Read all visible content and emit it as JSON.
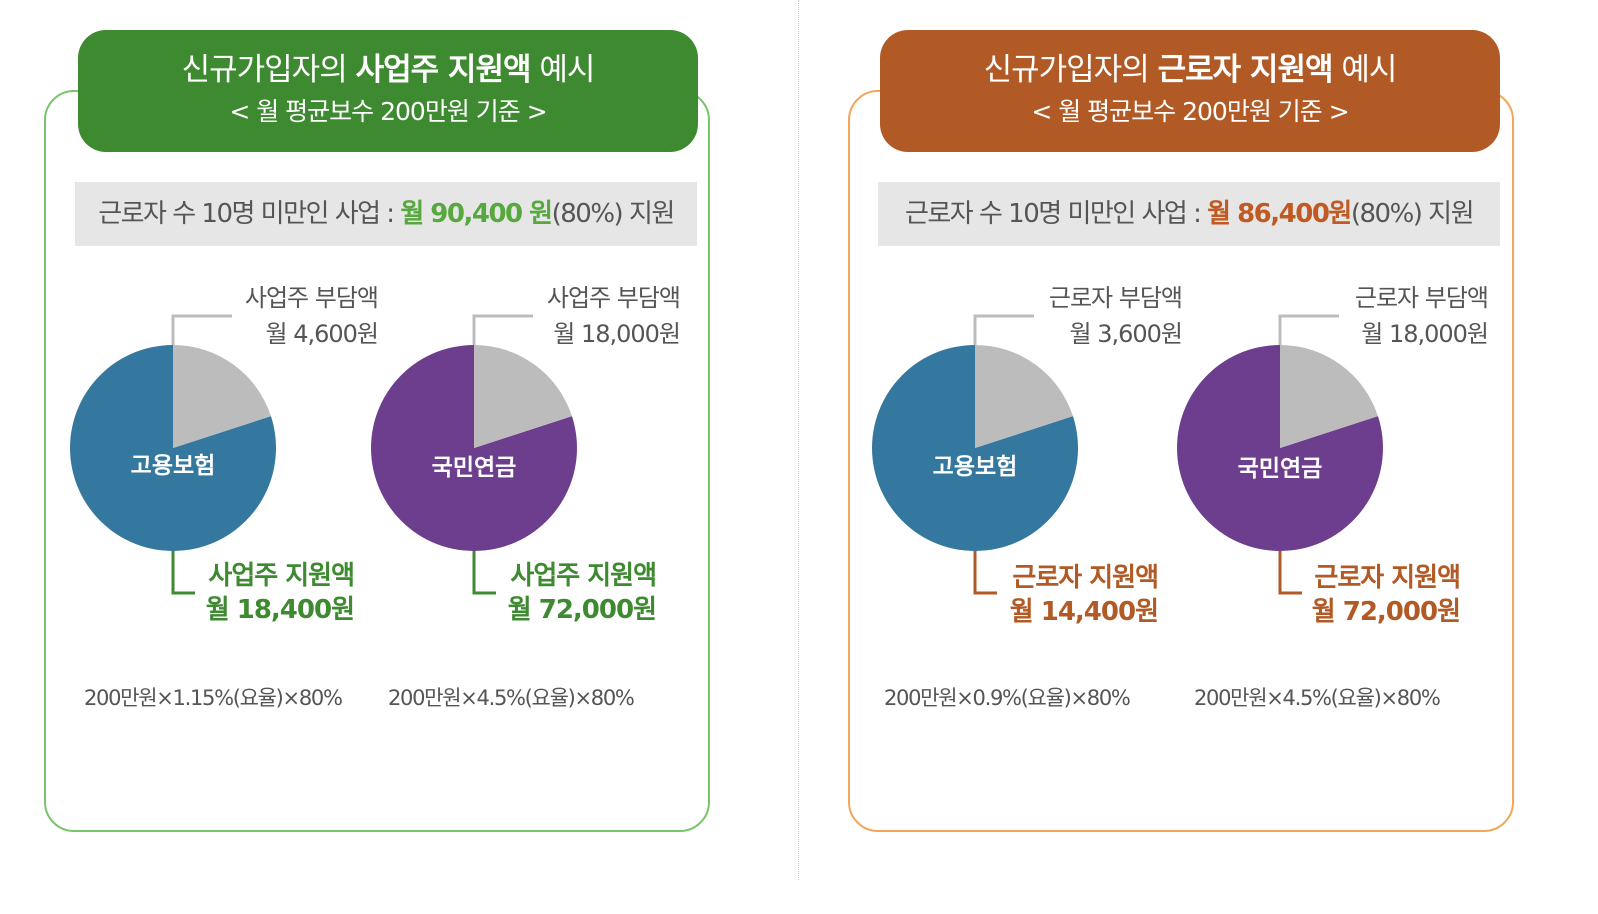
{
  "colors": {
    "green": "#3e8a31",
    "green_light": "#7ac46c",
    "orange": "#b15a25",
    "orange_light": "#f2a65a",
    "employment_insurance": "#34789f",
    "national_pension": "#6d3e8e",
    "burden_gray": "#bcbcbc"
  },
  "panels": [
    {
      "header": {
        "title_prefix": "신규가입자의 ",
        "title_bold": "사업주 지원액",
        "title_suffix": " 예시",
        "subtitle": "< 월 평균보수 200만원 기준 >"
      },
      "banner": {
        "prefix": "근로자 수 10명 미만인 사업 : ",
        "amount": "월 90,400 원",
        "suffix": "(80%) 지원"
      },
      "pies": [
        {
          "name": "고용보험",
          "burden_title": "사업주 부담액",
          "burden_value": "월 4,600원",
          "support_title": "사업주 지원액",
          "support_value": "월 18,400원",
          "formula": "200만원×1.15%(요율)×80%"
        },
        {
          "name": "국민연금",
          "burden_title": "사업주 부담액",
          "burden_value": "월 18,000원",
          "support_title": "사업주 지원액",
          "support_value": "월 72,000원",
          "formula": "200만원×4.5%(요율)×80%"
        }
      ]
    },
    {
      "header": {
        "title_prefix": "신규가입자의 ",
        "title_bold": "근로자 지원액",
        "title_suffix": " 예시",
        "subtitle": "< 월 평균보수 200만원 기준 >"
      },
      "banner": {
        "prefix": "근로자 수 10명 미만인 사업 : ",
        "amount": "월 86,400원",
        "suffix": "(80%) 지원"
      },
      "pies": [
        {
          "name": "고용보험",
          "burden_title": "근로자 부담액",
          "burden_value": "월 3,600원",
          "support_title": "근로자 지원액",
          "support_value": "월 14,400원",
          "formula": "200만원×0.9%(요율)×80%"
        },
        {
          "name": "국민연금",
          "burden_title": "근로자 부담액",
          "burden_value": "월 18,000원",
          "support_title": "근로자 지원액",
          "support_value": "월 72,000원",
          "formula": "200만원×4.5%(요율)×80%"
        }
      ]
    }
  ],
  "chart_data": [
    {
      "type": "pie",
      "title": "고용보험",
      "categories": [
        "사업주 지원액",
        "사업주 부담액"
      ],
      "values": [
        18400,
        4600
      ],
      "unit": "원"
    },
    {
      "type": "pie",
      "title": "국민연금",
      "categories": [
        "사업주 지원액",
        "사업주 부담액"
      ],
      "values": [
        72000,
        18000
      ],
      "unit": "원"
    },
    {
      "type": "pie",
      "title": "고용보험",
      "categories": [
        "근로자 지원액",
        "근로자 부담액"
      ],
      "values": [
        14400,
        3600
      ],
      "unit": "원"
    },
    {
      "type": "pie",
      "title": "국민연금",
      "categories": [
        "근로자 지원액",
        "근로자 부담액"
      ],
      "values": [
        72000,
        18000
      ],
      "unit": "원"
    }
  ]
}
